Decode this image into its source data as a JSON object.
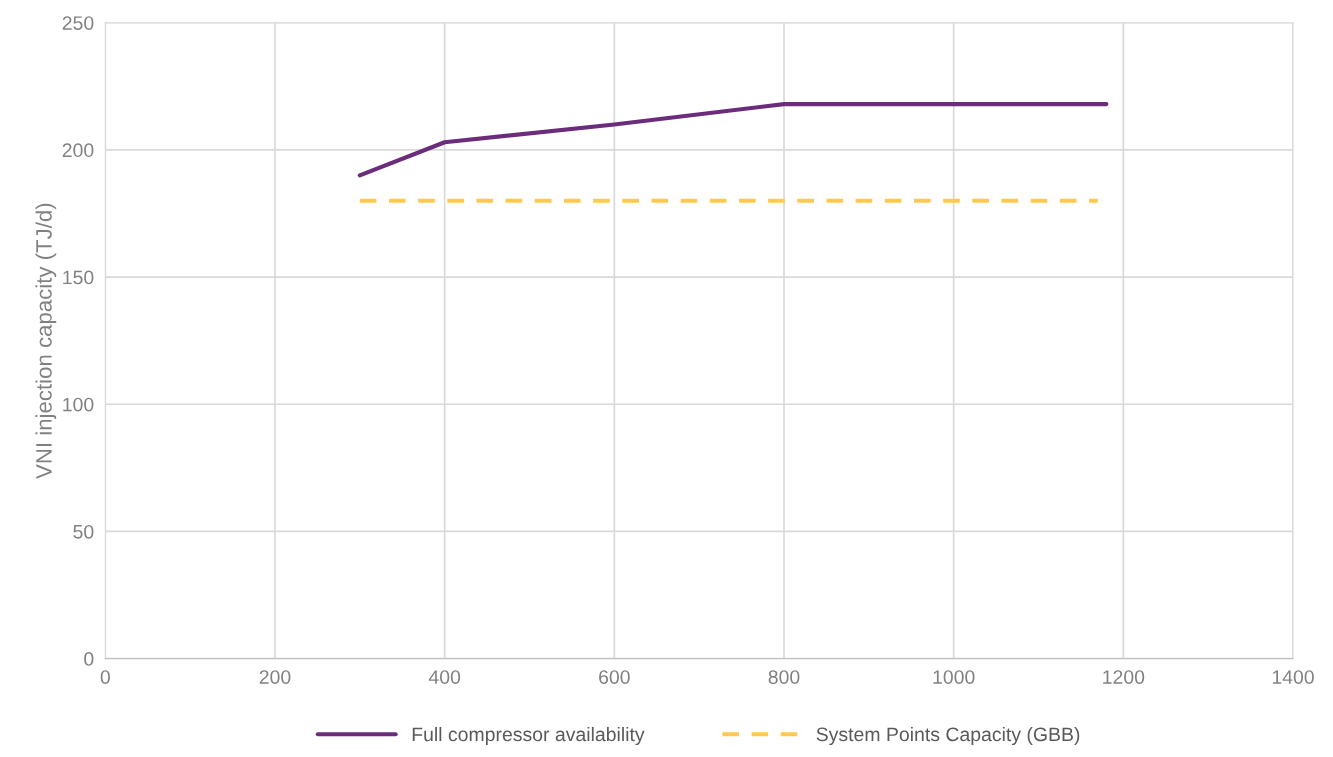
{
  "chart_data": {
    "type": "line",
    "ylabel": "VNI injection capacity (TJ/d)",
    "series": [
      {
        "name": "Full compressor availability",
        "color": "#6a2c7b",
        "x": [
          300,
          400,
          600,
          800,
          1180
        ],
        "values": [
          190,
          203,
          210,
          218,
          218
        ],
        "line_style": "solid"
      },
      {
        "name": "System Points Capacity (GBB)",
        "color": "#ffc94d",
        "x": [
          300,
          1170
        ],
        "values": [
          180,
          180
        ],
        "line_style": "dashed"
      }
    ],
    "xlim": [
      0,
      1400
    ],
    "xticks": [
      0,
      200,
      400,
      600,
      800,
      1000,
      1200,
      1400
    ],
    "ylim": [
      0,
      250
    ],
    "yticks": [
      0,
      50,
      100,
      150,
      200,
      250
    ],
    "grid": true,
    "legend": "bottom",
    "marker": "none"
  }
}
